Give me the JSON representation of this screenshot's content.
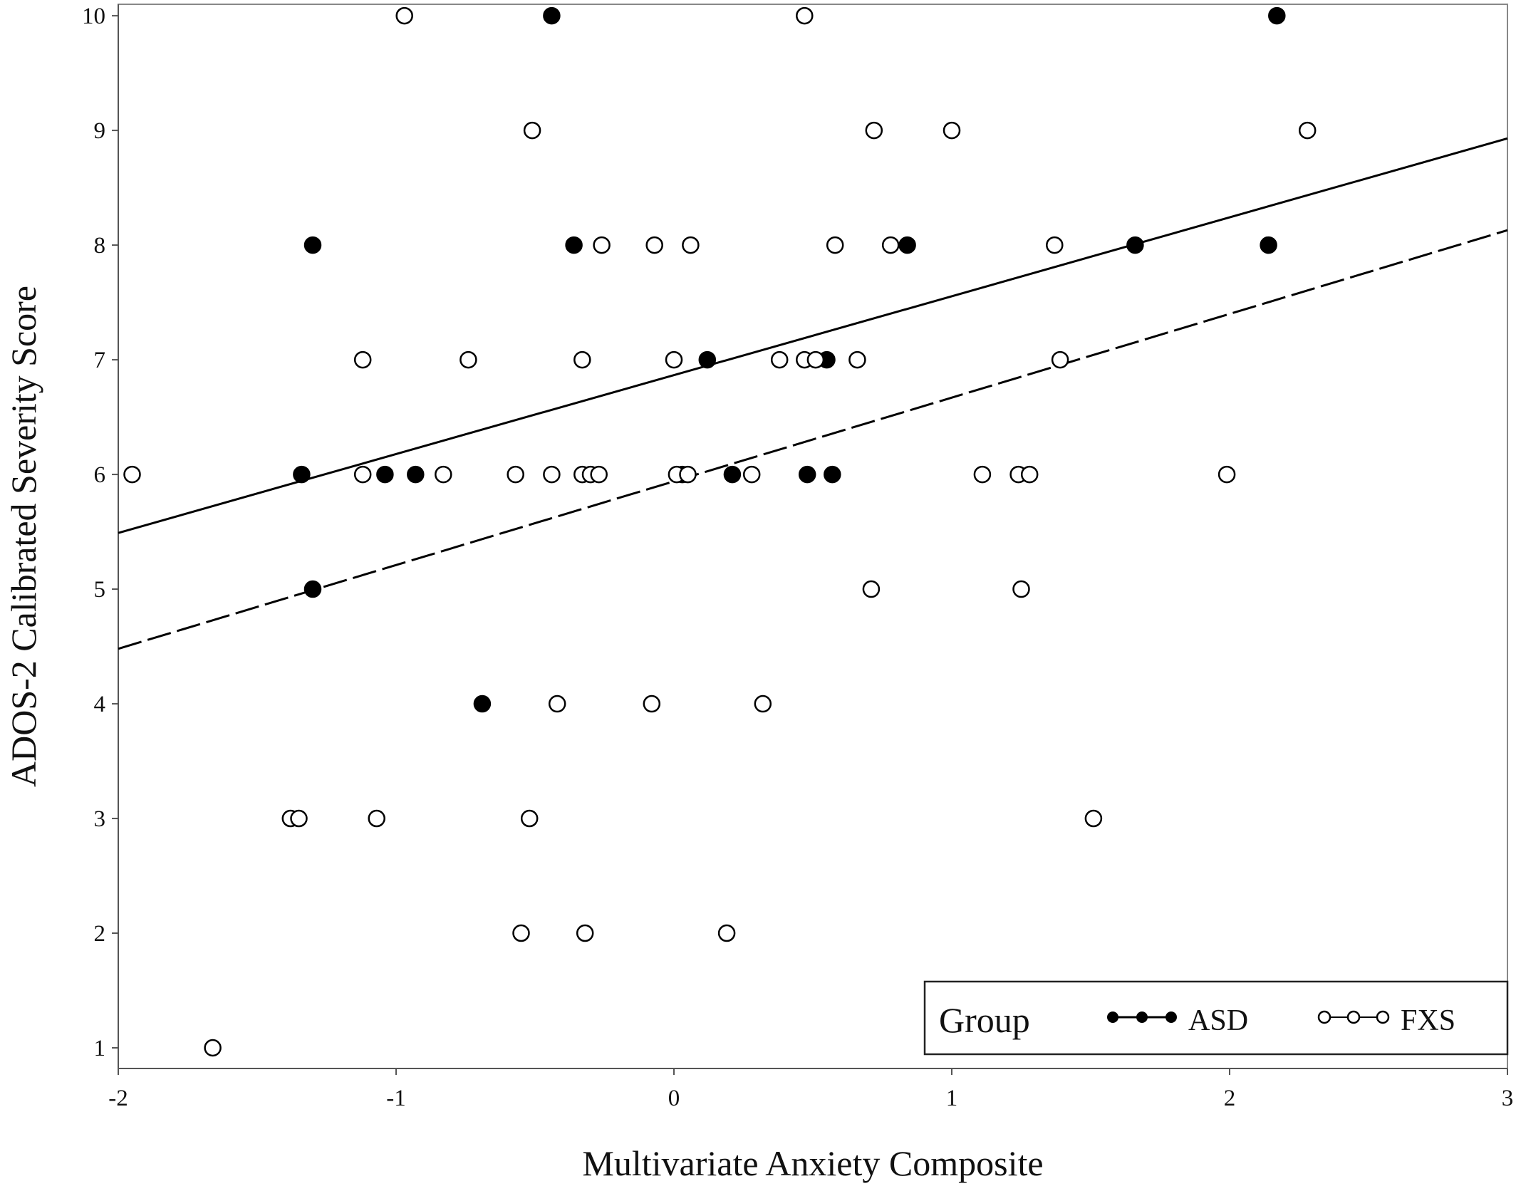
{
  "chart_data": {
    "type": "scatter",
    "title": "",
    "xlabel": "Multivariate Anxiety Composite",
    "ylabel": "ADOS-2 Calibrated Severity Score",
    "xlim": [
      -2,
      3
    ],
    "ylim": [
      0.82,
      10.1
    ],
    "x_ticks": [
      -2,
      -1,
      0,
      1,
      2,
      3
    ],
    "y_ticks": [
      1,
      2,
      3,
      4,
      5,
      6,
      7,
      8,
      9,
      10
    ],
    "grid": false,
    "legend": {
      "title": "Group",
      "placement": "bottom-right",
      "entries": [
        "ASD",
        "FXS"
      ]
    },
    "series": [
      {
        "name": "ASD",
        "marker": "filled-circle",
        "line_style": "solid",
        "color": "#000000",
        "fit_line": {
          "x": [
            -2,
            3
          ],
          "y": [
            5.49,
            8.93
          ]
        },
        "points": [
          {
            "x": -0.44,
            "y": 10
          },
          {
            "x": 2.17,
            "y": 10
          },
          {
            "x": -1.3,
            "y": 8
          },
          {
            "x": -0.36,
            "y": 8
          },
          {
            "x": 0.84,
            "y": 8
          },
          {
            "x": 1.66,
            "y": 8
          },
          {
            "x": 2.14,
            "y": 8
          },
          {
            "x": 0.12,
            "y": 7
          },
          {
            "x": 0.55,
            "y": 7
          },
          {
            "x": -1.34,
            "y": 6
          },
          {
            "x": -1.04,
            "y": 6
          },
          {
            "x": -0.93,
            "y": 6
          },
          {
            "x": 0.03,
            "y": 6
          },
          {
            "x": 0.21,
            "y": 6
          },
          {
            "x": 0.48,
            "y": 6
          },
          {
            "x": 0.57,
            "y": 6
          },
          {
            "x": -1.3,
            "y": 5
          },
          {
            "x": -0.69,
            "y": 4
          }
        ]
      },
      {
        "name": "FXS",
        "marker": "open-circle",
        "line_style": "dashed",
        "color": "#000000",
        "fit_line": {
          "x": [
            -2,
            3
          ],
          "y": [
            4.48,
            8.13
          ]
        },
        "points": [
          {
            "x": -0.97,
            "y": 10
          },
          {
            "x": 0.47,
            "y": 10
          },
          {
            "x": -0.51,
            "y": 9
          },
          {
            "x": 0.72,
            "y": 9
          },
          {
            "x": 1.0,
            "y": 9
          },
          {
            "x": 2.28,
            "y": 9
          },
          {
            "x": -0.26,
            "y": 8
          },
          {
            "x": -0.07,
            "y": 8
          },
          {
            "x": 0.06,
            "y": 8
          },
          {
            "x": 0.58,
            "y": 8
          },
          {
            "x": 0.78,
            "y": 8
          },
          {
            "x": 1.37,
            "y": 8
          },
          {
            "x": -1.12,
            "y": 7
          },
          {
            "x": -0.74,
            "y": 7
          },
          {
            "x": -0.33,
            "y": 7
          },
          {
            "x": 0.0,
            "y": 7
          },
          {
            "x": 0.38,
            "y": 7
          },
          {
            "x": 0.47,
            "y": 7
          },
          {
            "x": 0.51,
            "y": 7
          },
          {
            "x": 0.66,
            "y": 7
          },
          {
            "x": 1.39,
            "y": 7
          },
          {
            "x": -1.95,
            "y": 6
          },
          {
            "x": -1.12,
            "y": 6
          },
          {
            "x": -0.83,
            "y": 6
          },
          {
            "x": -0.57,
            "y": 6
          },
          {
            "x": -0.44,
            "y": 6
          },
          {
            "x": -0.33,
            "y": 6
          },
          {
            "x": -0.3,
            "y": 6
          },
          {
            "x": -0.27,
            "y": 6
          },
          {
            "x": 0.01,
            "y": 6
          },
          {
            "x": 0.05,
            "y": 6
          },
          {
            "x": 0.28,
            "y": 6
          },
          {
            "x": 1.11,
            "y": 6
          },
          {
            "x": 1.24,
            "y": 6
          },
          {
            "x": 1.28,
            "y": 6
          },
          {
            "x": 1.99,
            "y": 6
          },
          {
            "x": 0.71,
            "y": 5
          },
          {
            "x": 1.25,
            "y": 5
          },
          {
            "x": -0.42,
            "y": 4
          },
          {
            "x": -0.08,
            "y": 4
          },
          {
            "x": 0.32,
            "y": 4
          },
          {
            "x": -1.38,
            "y": 3
          },
          {
            "x": -1.35,
            "y": 3
          },
          {
            "x": -1.07,
            "y": 3
          },
          {
            "x": -0.52,
            "y": 3
          },
          {
            "x": 1.51,
            "y": 3
          },
          {
            "x": -0.55,
            "y": 2
          },
          {
            "x": -0.32,
            "y": 2
          },
          {
            "x": 0.19,
            "y": 2
          },
          {
            "x": -1.66,
            "y": 1
          }
        ]
      }
    ]
  }
}
